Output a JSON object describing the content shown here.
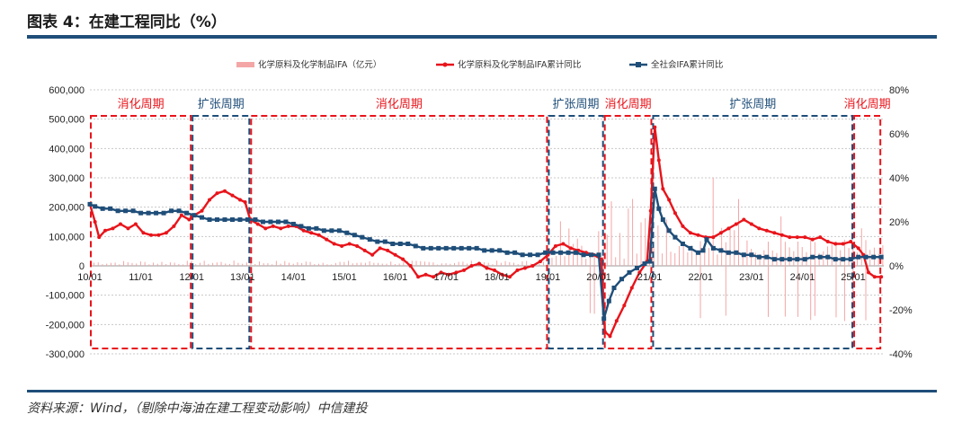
{
  "header": {
    "title": "图表 4：在建工程同比（%）"
  },
  "footer": {
    "source": "资料来源：Wind，（剔除中海油在建工程变动影响）中信建投"
  },
  "colors": {
    "red": "#e8141b",
    "navy": "#1f4e79",
    "bar": "#f4a6a6"
  },
  "chart_data": {
    "type": "line",
    "title": "在建工程同比（%）",
    "legend": [
      {
        "name": "化学原料及化学制品IFA（亿元）",
        "kind": "bar",
        "color": "#f4a6a6"
      },
      {
        "name": "化学原料及化学制品IFA累计同比",
        "kind": "line",
        "color": "#e8141b"
      },
      {
        "name": "全社会IFA累计同比",
        "kind": "line",
        "color": "#1f4e79"
      }
    ],
    "left_axis": {
      "min": -300000,
      "max": 600000,
      "ticks": [
        "600,000",
        "500,000",
        "400,000",
        "300,000",
        "200,000",
        "100,000",
        "0",
        "-100,000",
        "-200,000",
        "-300,000"
      ]
    },
    "right_axis": {
      "min": -40,
      "max": 80,
      "ticks": [
        "80%",
        "60%",
        "40%",
        "20%",
        "0%",
        "-20%",
        "-40%"
      ]
    },
    "x_axis": {
      "categories": [
        "10/01",
        "11/01",
        "12/01",
        "13/01",
        "14/01",
        "15/01",
        "16/01",
        "17/01",
        "18/01",
        "19/01",
        "20/01",
        "21/01",
        "22/01",
        "23/01",
        "24/01",
        "25/01"
      ],
      "range_years": [
        2010.0,
        2025.6
      ]
    },
    "phases": [
      {
        "label": "消化周期",
        "type": "消化",
        "start": 2010.0,
        "end": 2012.0
      },
      {
        "label": "扩张周期",
        "type": "扩张",
        "start": 2012.0,
        "end": 2013.15
      },
      {
        "label": "消化周期",
        "type": "消化",
        "start": 2013.15,
        "end": 2019.0
      },
      {
        "label": "扩张周期",
        "type": "扩张",
        "start": 2019.0,
        "end": 2020.1
      },
      {
        "label": "消化周期",
        "type": "消化",
        "start": 2020.1,
        "end": 2021.05
      },
      {
        "label": "扩张周期",
        "type": "扩张",
        "start": 2021.05,
        "end": 2025.0
      },
      {
        "label": "消化周期",
        "type": "消化",
        "start": 2025.0,
        "end": 2025.55
      }
    ],
    "series": [
      {
        "name": "化学原料及化学制品IFA累计同比",
        "unit": "%",
        "points": [
          [
            2010.0,
            28
          ],
          [
            2010.1,
            20
          ],
          [
            2010.18,
            13
          ],
          [
            2010.3,
            16
          ],
          [
            2010.45,
            17
          ],
          [
            2010.6,
            19
          ],
          [
            2010.75,
            17
          ],
          [
            2010.9,
            19
          ],
          [
            2011.05,
            15
          ],
          [
            2011.2,
            14
          ],
          [
            2011.35,
            14
          ],
          [
            2011.5,
            15
          ],
          [
            2011.65,
            18
          ],
          [
            2011.8,
            23
          ],
          [
            2011.95,
            21
          ],
          [
            2012.05,
            23
          ],
          [
            2012.2,
            25
          ],
          [
            2012.35,
            30
          ],
          [
            2012.5,
            33
          ],
          [
            2012.65,
            34
          ],
          [
            2012.8,
            32
          ],
          [
            2012.95,
            30
          ],
          [
            2013.05,
            29
          ],
          [
            2013.15,
            21
          ],
          [
            2013.3,
            19
          ],
          [
            2013.45,
            17
          ],
          [
            2013.6,
            18
          ],
          [
            2013.75,
            17
          ],
          [
            2013.9,
            18
          ],
          [
            2014.05,
            18
          ],
          [
            2014.2,
            16
          ],
          [
            2014.35,
            15
          ],
          [
            2014.5,
            14
          ],
          [
            2014.65,
            12
          ],
          [
            2014.8,
            10
          ],
          [
            2014.95,
            9
          ],
          [
            2015.1,
            10
          ],
          [
            2015.25,
            9
          ],
          [
            2015.4,
            7
          ],
          [
            2015.55,
            5
          ],
          [
            2015.7,
            8
          ],
          [
            2015.85,
            7
          ],
          [
            2016.0,
            5
          ],
          [
            2016.15,
            3
          ],
          [
            2016.3,
            0
          ],
          [
            2016.45,
            -5
          ],
          [
            2016.6,
            -4
          ],
          [
            2016.75,
            -5
          ],
          [
            2016.9,
            -3
          ],
          [
            2017.05,
            -4
          ],
          [
            2017.2,
            -3
          ],
          [
            2017.35,
            -2
          ],
          [
            2017.5,
            0
          ],
          [
            2017.65,
            1
          ],
          [
            2017.8,
            -1
          ],
          [
            2017.95,
            -2
          ],
          [
            2018.1,
            -4
          ],
          [
            2018.25,
            -5
          ],
          [
            2018.4,
            -2
          ],
          [
            2018.55,
            -1
          ],
          [
            2018.7,
            0
          ],
          [
            2018.85,
            2
          ],
          [
            2019.0,
            5
          ],
          [
            2019.15,
            9
          ],
          [
            2019.3,
            10
          ],
          [
            2019.45,
            8
          ],
          [
            2019.6,
            7
          ],
          [
            2019.75,
            6
          ],
          [
            2019.9,
            5
          ],
          [
            2020.05,
            3
          ],
          [
            2020.12,
            -30
          ],
          [
            2020.22,
            -32
          ],
          [
            2020.35,
            -25
          ],
          [
            2020.5,
            -18
          ],
          [
            2020.65,
            -10
          ],
          [
            2020.8,
            -3
          ],
          [
            2020.95,
            2
          ],
          [
            2021.02,
            25
          ],
          [
            2021.1,
            63
          ],
          [
            2021.18,
            48
          ],
          [
            2021.26,
            35
          ],
          [
            2021.38,
            30
          ],
          [
            2021.5,
            24
          ],
          [
            2021.65,
            18
          ],
          [
            2021.8,
            15
          ],
          [
            2021.95,
            14
          ],
          [
            2022.1,
            13
          ],
          [
            2022.25,
            13
          ],
          [
            2022.4,
            15
          ],
          [
            2022.55,
            17
          ],
          [
            2022.7,
            19
          ],
          [
            2022.85,
            21
          ],
          [
            2023.0,
            19
          ],
          [
            2023.15,
            17
          ],
          [
            2023.3,
            16
          ],
          [
            2023.45,
            15
          ],
          [
            2023.6,
            14
          ],
          [
            2023.75,
            13
          ],
          [
            2023.9,
            13
          ],
          [
            2024.05,
            13
          ],
          [
            2024.2,
            12
          ],
          [
            2024.35,
            13
          ],
          [
            2024.5,
            11
          ],
          [
            2024.65,
            10
          ],
          [
            2024.8,
            10
          ],
          [
            2024.95,
            11
          ],
          [
            2025.1,
            8
          ],
          [
            2025.2,
            5
          ],
          [
            2025.3,
            -3
          ],
          [
            2025.42,
            -5
          ],
          [
            2025.55,
            -5
          ]
        ]
      },
      {
        "name": "全社会IFA累计同比",
        "unit": "%",
        "points": [
          [
            2010.0,
            28
          ],
          [
            2010.1,
            27
          ],
          [
            2010.25,
            26
          ],
          [
            2010.4,
            26
          ],
          [
            2010.55,
            25
          ],
          [
            2010.7,
            25
          ],
          [
            2010.85,
            25
          ],
          [
            2011.0,
            24
          ],
          [
            2011.15,
            24
          ],
          [
            2011.3,
            24
          ],
          [
            2011.45,
            24
          ],
          [
            2011.6,
            25
          ],
          [
            2011.75,
            25
          ],
          [
            2011.9,
            24
          ],
          [
            2012.05,
            23
          ],
          [
            2012.2,
            22
          ],
          [
            2012.35,
            21
          ],
          [
            2012.5,
            21
          ],
          [
            2012.65,
            21
          ],
          [
            2012.8,
            21
          ],
          [
            2012.95,
            21
          ],
          [
            2013.1,
            21
          ],
          [
            2013.25,
            21
          ],
          [
            2013.4,
            20
          ],
          [
            2013.55,
            20
          ],
          [
            2013.7,
            20
          ],
          [
            2013.85,
            20
          ],
          [
            2014.0,
            19
          ],
          [
            2014.15,
            18
          ],
          [
            2014.3,
            17
          ],
          [
            2014.45,
            17
          ],
          [
            2014.6,
            16
          ],
          [
            2014.75,
            16
          ],
          [
            2014.9,
            16
          ],
          [
            2015.05,
            15
          ],
          [
            2015.2,
            14
          ],
          [
            2015.35,
            13
          ],
          [
            2015.5,
            12
          ],
          [
            2015.65,
            11
          ],
          [
            2015.8,
            11
          ],
          [
            2015.95,
            10
          ],
          [
            2016.1,
            10
          ],
          [
            2016.25,
            10
          ],
          [
            2016.4,
            9
          ],
          [
            2016.55,
            8
          ],
          [
            2016.7,
            8
          ],
          [
            2016.85,
            8
          ],
          [
            2017.0,
            8
          ],
          [
            2017.15,
            8
          ],
          [
            2017.3,
            8
          ],
          [
            2017.45,
            8
          ],
          [
            2017.6,
            8
          ],
          [
            2017.75,
            7
          ],
          [
            2017.9,
            7
          ],
          [
            2018.05,
            7
          ],
          [
            2018.2,
            6
          ],
          [
            2018.35,
            6
          ],
          [
            2018.5,
            5
          ],
          [
            2018.65,
            5
          ],
          [
            2018.8,
            5
          ],
          [
            2018.95,
            6
          ],
          [
            2019.1,
            6
          ],
          [
            2019.25,
            6
          ],
          [
            2019.4,
            6
          ],
          [
            2019.55,
            6
          ],
          [
            2019.7,
            5
          ],
          [
            2019.85,
            5
          ],
          [
            2020.0,
            5
          ],
          [
            2020.1,
            -24
          ],
          [
            2020.2,
            -16
          ],
          [
            2020.3,
            -10
          ],
          [
            2020.45,
            -6
          ],
          [
            2020.6,
            -3
          ],
          [
            2020.75,
            -1
          ],
          [
            2020.9,
            1
          ],
          [
            2021.0,
            2
          ],
          [
            2021.1,
            35
          ],
          [
            2021.18,
            26
          ],
          [
            2021.26,
            21
          ],
          [
            2021.38,
            16
          ],
          [
            2021.5,
            13
          ],
          [
            2021.65,
            10
          ],
          [
            2021.8,
            8
          ],
          [
            2021.95,
            6
          ],
          [
            2022.05,
            7
          ],
          [
            2022.12,
            12
          ],
          [
            2022.25,
            8
          ],
          [
            2022.4,
            7
          ],
          [
            2022.55,
            6
          ],
          [
            2022.7,
            6
          ],
          [
            2022.85,
            5
          ],
          [
            2023.0,
            5
          ],
          [
            2023.15,
            4
          ],
          [
            2023.3,
            4
          ],
          [
            2023.45,
            3
          ],
          [
            2023.6,
            3
          ],
          [
            2023.75,
            3
          ],
          [
            2023.9,
            3
          ],
          [
            2024.05,
            3
          ],
          [
            2024.2,
            4
          ],
          [
            2024.35,
            4
          ],
          [
            2024.5,
            4
          ],
          [
            2024.65,
            3
          ],
          [
            2024.8,
            3
          ],
          [
            2024.95,
            3
          ],
          [
            2025.1,
            4
          ],
          [
            2025.25,
            4
          ],
          [
            2025.4,
            4
          ],
          [
            2025.55,
            4
          ]
        ]
      }
    ]
  }
}
